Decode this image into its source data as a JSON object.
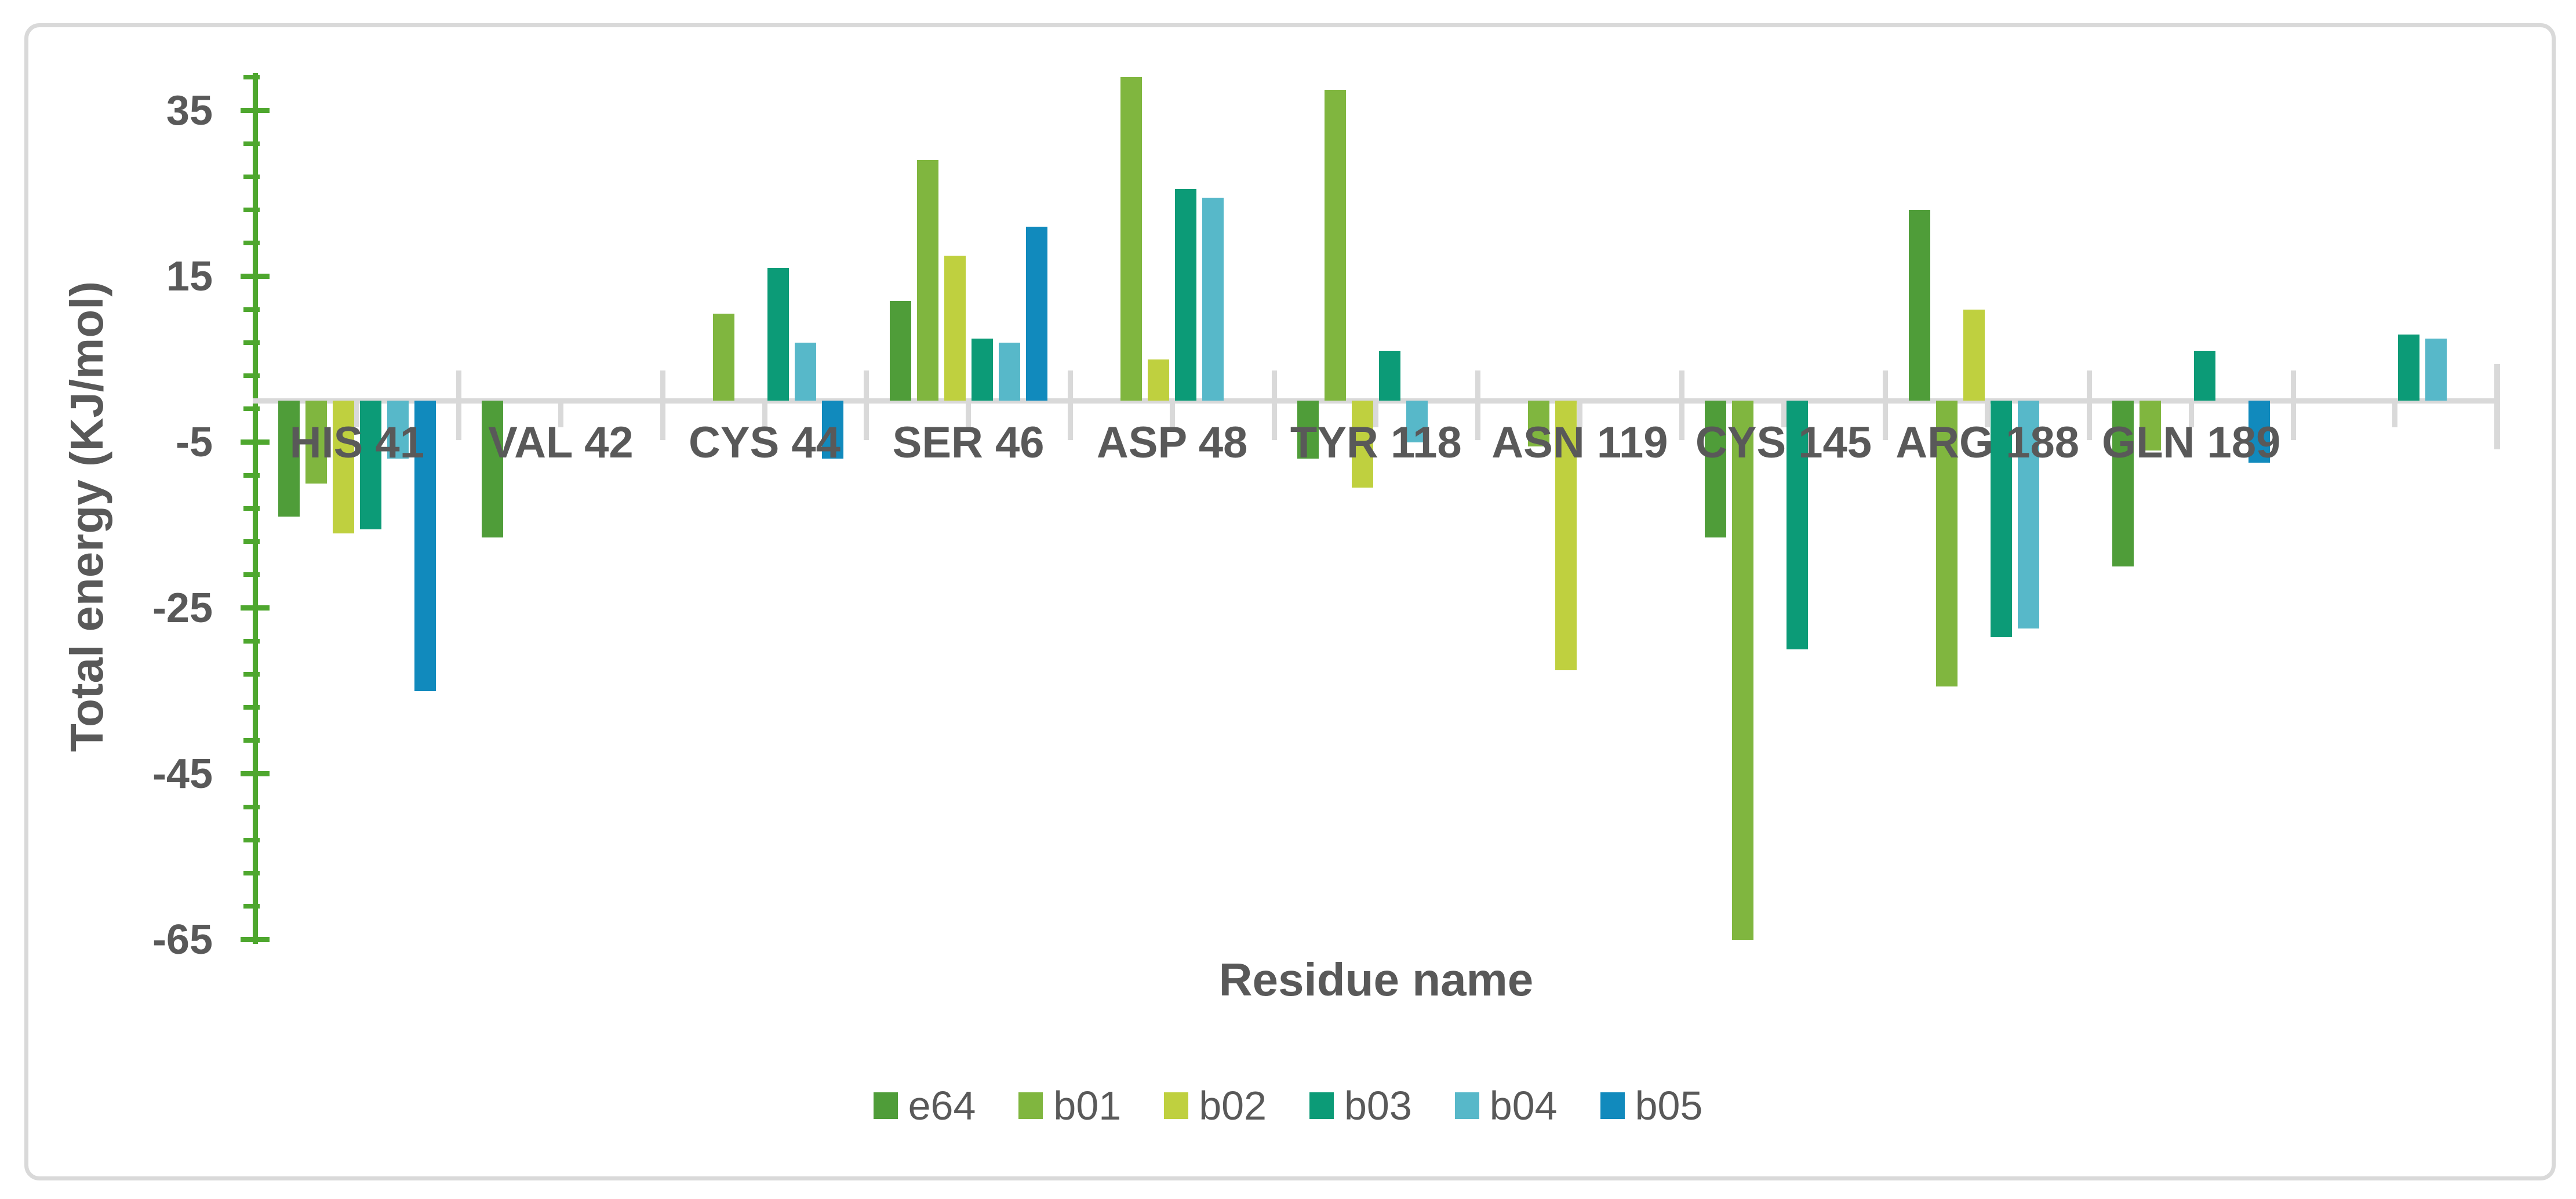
{
  "chart_data": {
    "type": "bar",
    "title": "",
    "xlabel": "Residue name",
    "ylabel": "Total energy (KJ/mol)",
    "ylim": [
      -69,
      40
    ],
    "yticks_major": [
      35,
      15,
      -5,
      -25,
      -45,
      -65
    ],
    "ytick_minor_step": 4,
    "grid": false,
    "legend_position": "bottom",
    "categories": [
      "HIS 41",
      "VAL 42",
      "CYS 44",
      "SER 46",
      "ASP 48",
      "TYR 118",
      "ASN 119",
      "CYS 145",
      "ARG 188",
      "GLN 189",
      ""
    ],
    "series": [
      {
        "name": "e64",
        "color": "#4F9D39",
        "values": [
          -14,
          -16.5,
          0,
          12,
          0,
          -7,
          0,
          -16.5,
          23,
          -20,
          0
        ]
      },
      {
        "name": "b01",
        "color": "#80B63F",
        "values": [
          -10,
          0,
          10.5,
          29,
          39,
          37.5,
          -5.5,
          -65,
          -34.5,
          -6,
          0
        ]
      },
      {
        "name": "b02",
        "color": "#BFD03F",
        "values": [
          -16,
          0,
          0,
          17.5,
          5,
          -10.5,
          -32.5,
          0,
          11,
          0,
          0
        ]
      },
      {
        "name": "b03",
        "color": "#0C9B77",
        "values": [
          -15.5,
          0,
          16,
          7.5,
          25.5,
          6,
          0,
          -30,
          -28.5,
          6,
          8
        ]
      },
      {
        "name": "b04",
        "color": "#57B8C9",
        "values": [
          -7,
          0,
          7,
          7,
          24.5,
          -5,
          0,
          0,
          -27.5,
          0,
          7.5
        ]
      },
      {
        "name": "b05",
        "color": "#118ABD",
        "values": [
          -35,
          0,
          -7,
          21,
          0,
          0,
          0,
          0,
          0,
          -7.5,
          0
        ]
      }
    ],
    "colors": {
      "axis": "#4EA72E",
      "baseline_and_frame": "#D9D9D9",
      "text": "#595959"
    }
  }
}
